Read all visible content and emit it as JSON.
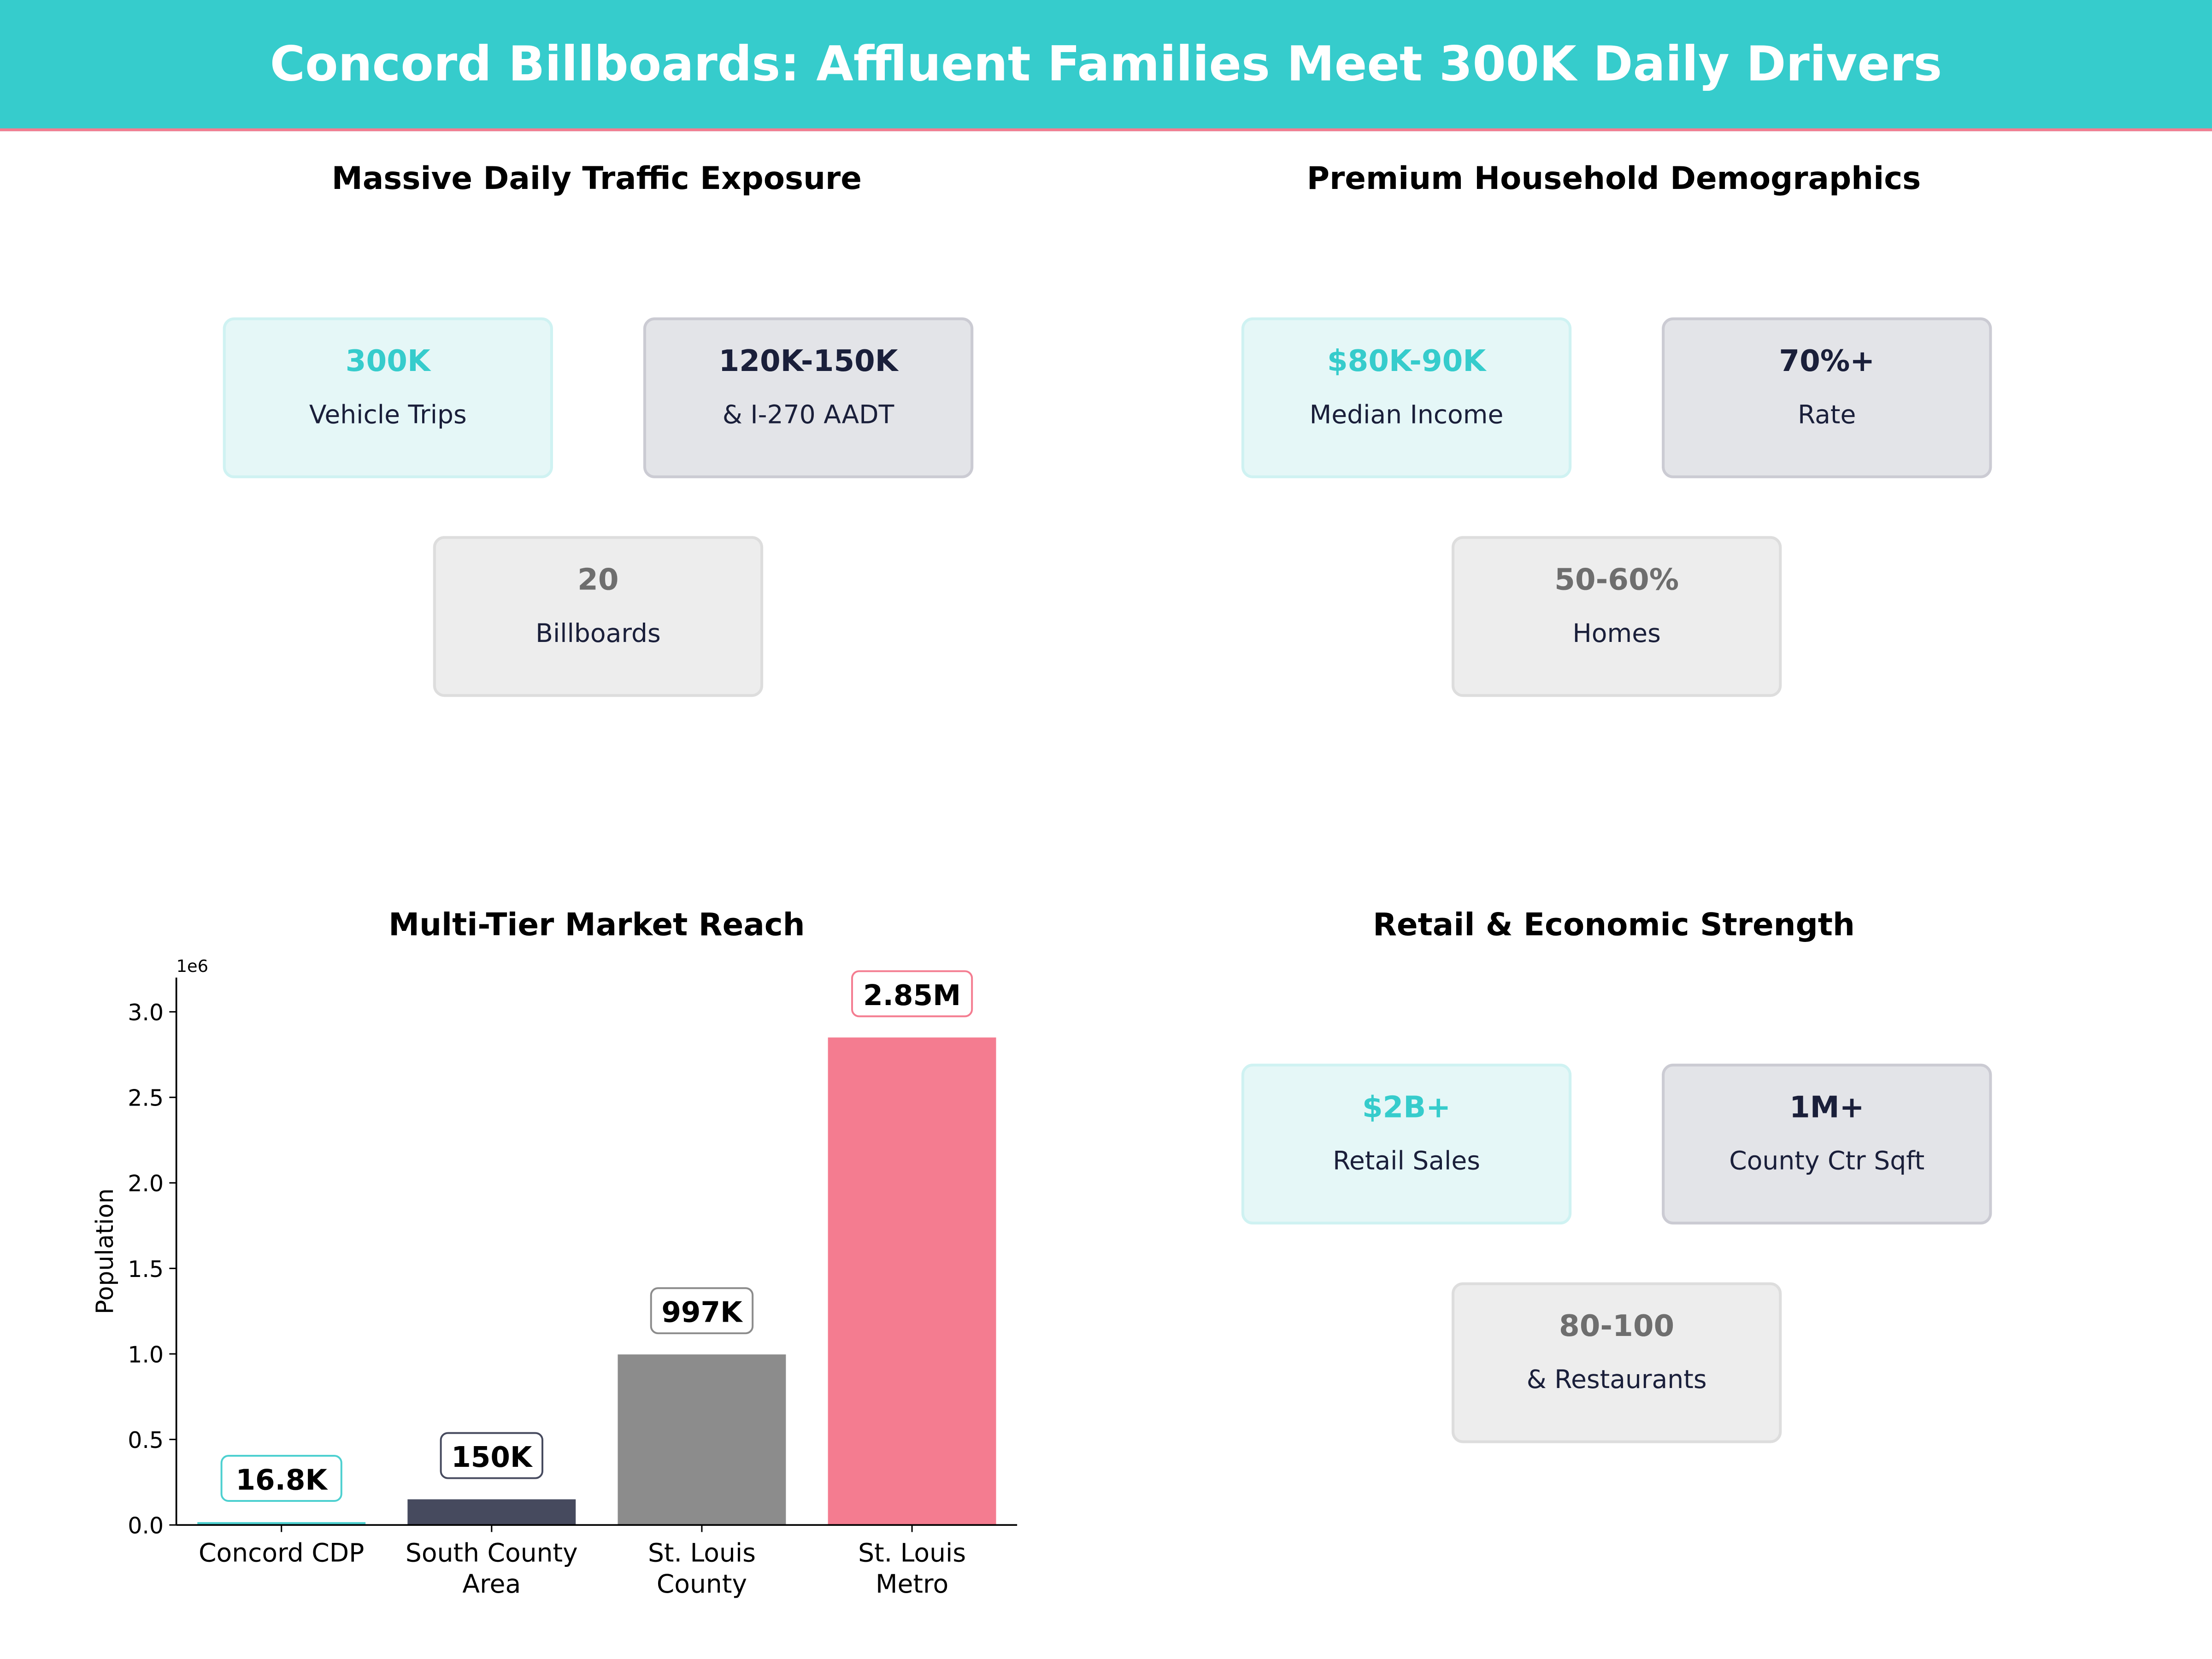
{
  "header": {
    "title": "Concord Billboards: Affluent Families Meet 300K Daily Drivers"
  },
  "colors": {
    "header_bg": "#36CCCC",
    "accent_line": "#F47C90",
    "teal": "#36CCCC",
    "navy": "#1A1F3A",
    "gray": "#6E6E6E"
  },
  "panels": {
    "traffic": {
      "title": "Massive Daily Traffic Exposure",
      "cards": [
        {
          "value": "300K",
          "label": "Vehicle Trips"
        },
        {
          "value": "120K-150K",
          "label": "& I-270 AADT"
        },
        {
          "value": "20",
          "label": "Billboards"
        }
      ]
    },
    "demographics": {
      "title": "Premium Household Demographics",
      "cards": [
        {
          "value": "$80K-90K",
          "label": "Median Income"
        },
        {
          "value": "70%+",
          "label": "Rate"
        },
        {
          "value": "50-60%",
          "label": "Homes"
        }
      ]
    },
    "retail": {
      "title": "Retail & Economic Strength",
      "cards": [
        {
          "value": "$2B+",
          "label": "Retail Sales"
        },
        {
          "value": "1M+",
          "label": "County Ctr Sqft"
        },
        {
          "value": "80-100",
          "label": "& Restaurants"
        }
      ]
    }
  },
  "chart_data": {
    "type": "bar",
    "title": "Multi-Tier Market Reach",
    "categories": [
      "Concord CDP",
      "South County Area",
      "St. Louis County",
      "St. Louis Metro"
    ],
    "values": [
      16800,
      150000,
      997000,
      2850000
    ],
    "data_labels": [
      "16.8K",
      "150K",
      "997K",
      "2.85M"
    ],
    "bar_colors": [
      "#4DD0D0",
      "#464A5E",
      "#8C8C8C",
      "#F47C90"
    ],
    "label_border_colors": [
      "#4DD0D0",
      "#464A5E",
      "#8C8C8C",
      "#F47C90"
    ],
    "xlabel": "",
    "ylabel": "Population",
    "offset_text": "1e6",
    "yticks": [
      "0.0",
      "0.5",
      "1.0",
      "1.5",
      "2.0",
      "2.5",
      "3.0"
    ],
    "ylim": [
      0,
      3200000
    ],
    "grid": false
  }
}
